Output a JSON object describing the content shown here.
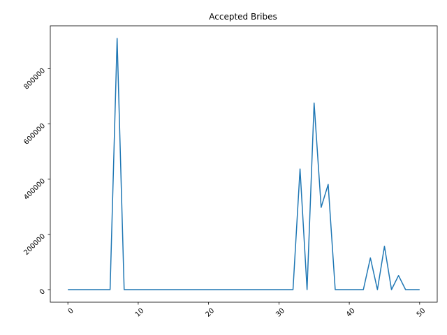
{
  "chart_data": {
    "type": "line",
    "title": "Accepted Bribes",
    "xlabel": "",
    "ylabel": "",
    "grid": false,
    "xlim": [
      -2.5,
      52.5
    ],
    "ylim": [
      -45500,
      955500
    ],
    "xticks": [
      0,
      10,
      20,
      30,
      40,
      50
    ],
    "xtick_labels": [
      "0",
      "10",
      "20",
      "30",
      "40",
      "50"
    ],
    "yticks": [
      0,
      200000,
      400000,
      600000,
      800000
    ],
    "ytick_labels": [
      "0",
      "200000",
      "400000",
      "600000",
      "800000"
    ],
    "tick_label_rotation": 45,
    "series": [
      {
        "color": "#1f77b4",
        "x": [
          0,
          1,
          2,
          3,
          4,
          5,
          6,
          7,
          8,
          9,
          10,
          11,
          12,
          13,
          14,
          15,
          16,
          17,
          18,
          19,
          20,
          21,
          22,
          23,
          24,
          25,
          26,
          27,
          28,
          29,
          30,
          31,
          32,
          33,
          34,
          35,
          36,
          37,
          38,
          39,
          40,
          41,
          42,
          43,
          44,
          45,
          46,
          47,
          48,
          49,
          50
        ],
        "values": [
          0,
          0,
          0,
          0,
          0,
          0,
          0,
          910000,
          0,
          0,
          0,
          0,
          0,
          0,
          0,
          0,
          0,
          0,
          0,
          0,
          0,
          0,
          0,
          0,
          0,
          0,
          0,
          0,
          0,
          0,
          0,
          0,
          0,
          437000,
          0,
          676000,
          298000,
          381000,
          0,
          0,
          0,
          0,
          0,
          115000,
          0,
          157000,
          0,
          51000,
          0,
          0,
          0
        ]
      }
    ]
  }
}
